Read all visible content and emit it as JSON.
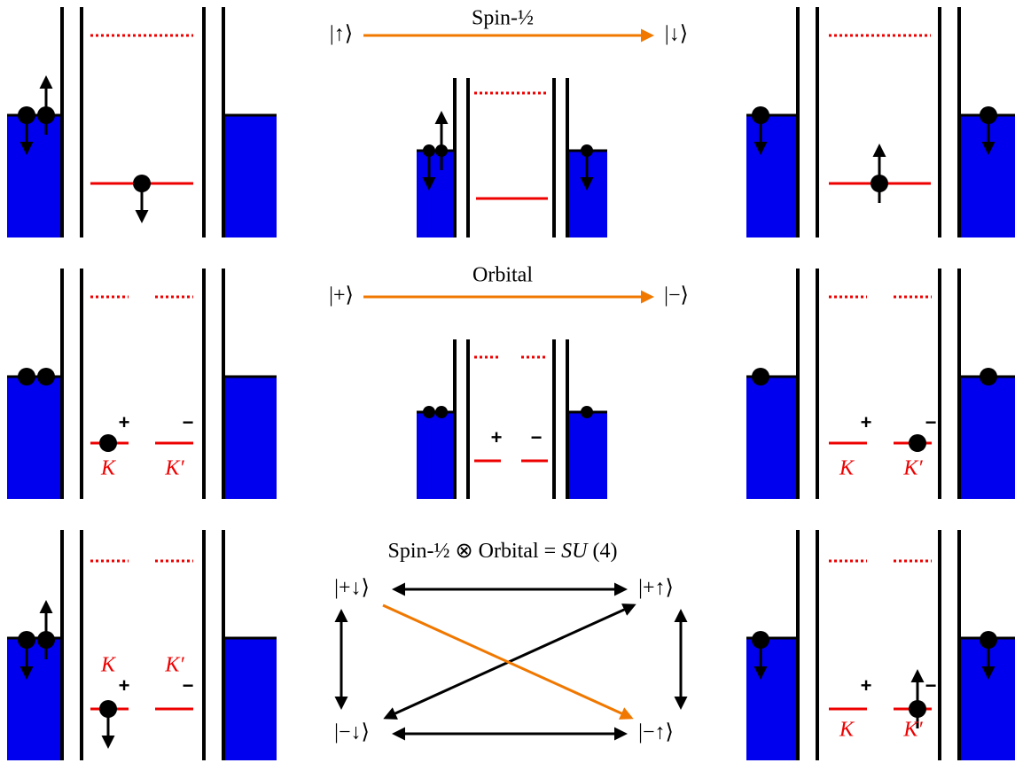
{
  "spin": {
    "title": "Spin-½",
    "from": "|↑⟩",
    "to": "|↓⟩"
  },
  "orbital": {
    "title": "Orbital",
    "from": "|+⟩",
    "to": "|−⟩"
  },
  "su4": {
    "title_prefix": "Spin-½ ⊗ Orbital = ",
    "title_italic": "SU",
    "title_suffix": " (4)",
    "states": [
      "|+↓⟩",
      "|+↑⟩",
      "|−↓⟩",
      "|−↑⟩"
    ]
  },
  "labels": {
    "plus": "+",
    "minus": "−",
    "valley_k": "K",
    "valley_kp": "K′"
  }
}
